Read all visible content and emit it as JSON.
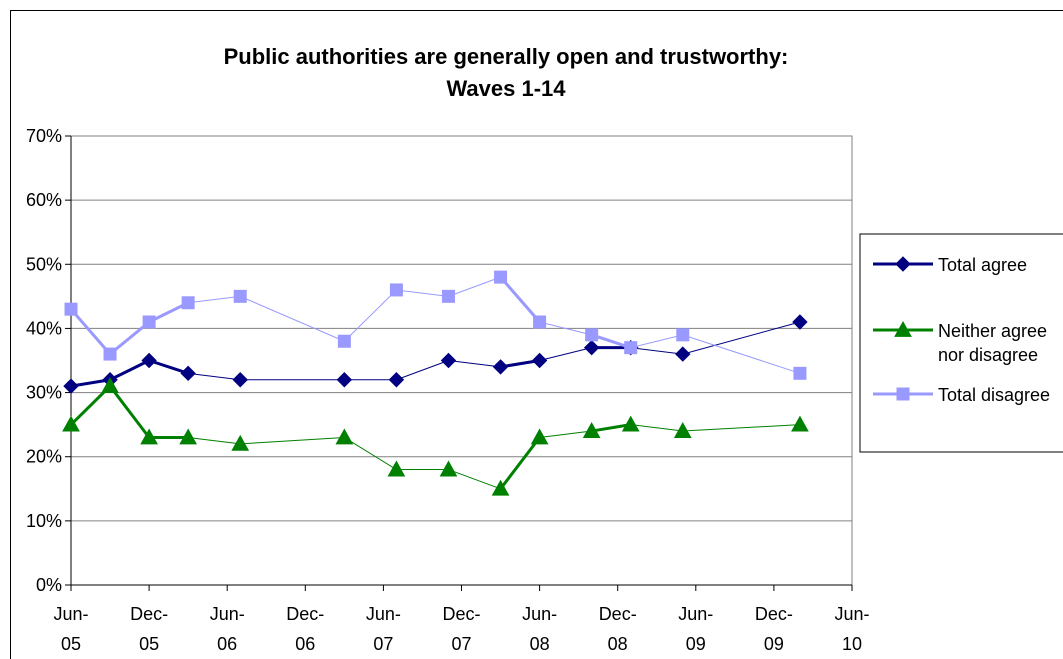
{
  "chart_data": {
    "type": "line",
    "title_lines": [
      "Public authorities are generally open and trustworthy:",
      "Waves 1-14"
    ],
    "xlabel": "",
    "ylabel": "",
    "x_tick_labels": [
      [
        "Jun-",
        "05"
      ],
      [
        "Dec-",
        "05"
      ],
      [
        "Jun-",
        "06"
      ],
      [
        "Dec-",
        "06"
      ],
      [
        "Jun-",
        "07"
      ],
      [
        "Dec-",
        "07"
      ],
      [
        "Jun-",
        "08"
      ],
      [
        "Dec-",
        "08"
      ],
      [
        "Jun-",
        "09"
      ],
      [
        "Dec-",
        "09"
      ],
      [
        "Jun-",
        "10"
      ]
    ],
    "x_range": [
      "2005-06",
      "2010-06"
    ],
    "y_tick_labels": [
      "0%",
      "10%",
      "20%",
      "30%",
      "40%",
      "50%",
      "60%",
      "70%"
    ],
    "ylim": [
      0,
      70
    ],
    "grid_y": true,
    "legend_position": "right",
    "dates": [
      "2005-06",
      "2005-09",
      "2005-12",
      "2006-03",
      "2006-07",
      "2007-03",
      "2007-07",
      "2007-11",
      "2008-03",
      "2008-06",
      "2008-10",
      "2009-01",
      "2009-05",
      "2010-02"
    ],
    "series": [
      {
        "name": "Total agree",
        "legend_lines": [
          "Total agree"
        ],
        "color": "#000080",
        "marker": "diamond",
        "values": [
          31,
          32,
          35,
          33,
          32,
          32,
          32,
          35,
          34,
          35,
          37,
          37,
          36,
          41
        ]
      },
      {
        "name": "Neither agree nor disagree",
        "legend_lines": [
          "Neither agree",
          "nor disagree"
        ],
        "color": "#008000",
        "marker": "triangle",
        "values": [
          25,
          31,
          23,
          23,
          22,
          23,
          18,
          18,
          15,
          23,
          24,
          25,
          24,
          25
        ]
      },
      {
        "name": "Total disagree",
        "legend_lines": [
          "Total disagree"
        ],
        "color": "#9999FF",
        "marker": "square",
        "values": [
          43,
          36,
          41,
          44,
          45,
          38,
          46,
          45,
          48,
          41,
          39,
          37,
          39,
          33
        ]
      }
    ]
  }
}
